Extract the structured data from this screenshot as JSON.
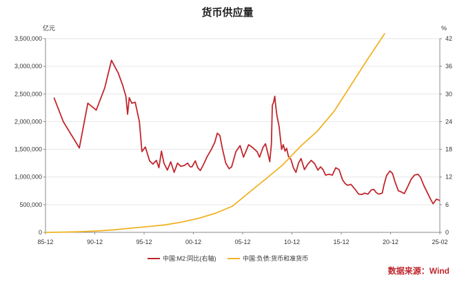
{
  "chart_data": {
    "type": "line",
    "title": "货币供应量",
    "left_unit": "亿元",
    "right_unit": "%",
    "source": "数据来源：Wind",
    "x_tick_labels": [
      "85-12",
      "90-12",
      "95-12",
      "00-12",
      "05-12",
      "10-12",
      "15-12",
      "20-12",
      "25-02"
    ],
    "y_left": {
      "ylim": [
        0,
        3500000
      ],
      "ticks": [
        0,
        500000,
        1000000,
        1500000,
        2000000,
        2500000,
        3000000,
        3500000
      ],
      "tick_labels": [
        "0",
        "500,000",
        "1,000,000",
        "1,500,000",
        "2,000,000",
        "2,500,000",
        "3,000,000",
        "3,500,000"
      ]
    },
    "y_right": {
      "ylim": [
        0,
        42
      ],
      "ticks": [
        0,
        6,
        12,
        18,
        24,
        30,
        36,
        42
      ],
      "tick_labels": [
        "0",
        "6",
        "12",
        "18",
        "24",
        "30",
        "36",
        "42"
      ]
    },
    "grid": "horizontal",
    "legend_position": "bottom",
    "series": [
      {
        "name": "中国:M2:同比(右轴)",
        "axis": "right",
        "color": "#c0262c",
        "points": [
          [
            1986.9,
            29.2
          ],
          [
            1988.0,
            24.0
          ],
          [
            1989.9,
            18.3
          ],
          [
            1990.9,
            28.0
          ],
          [
            1991.9,
            26.5
          ],
          [
            1992.9,
            31.3
          ],
          [
            1993.7,
            37.3
          ],
          [
            1994.5,
            34.5
          ],
          [
            1995.0,
            32.0
          ],
          [
            1995.4,
            29.5
          ],
          [
            1995.6,
            25.6
          ],
          [
            1995.8,
            29.2
          ],
          [
            1996.1,
            28.0
          ],
          [
            1996.5,
            28.2
          ],
          [
            1997.0,
            24.0
          ],
          [
            1997.3,
            17.5
          ],
          [
            1997.7,
            18.5
          ],
          [
            1998.2,
            15.5
          ],
          [
            1998.6,
            14.8
          ],
          [
            1999.0,
            15.6
          ],
          [
            1999.3,
            14.0
          ],
          [
            1999.6,
            17.6
          ],
          [
            1999.9,
            15.0
          ],
          [
            2000.3,
            13.5
          ],
          [
            2000.7,
            15.3
          ],
          [
            2001.1,
            13.0
          ],
          [
            2001.5,
            15.0
          ],
          [
            2001.9,
            14.3
          ],
          [
            2002.3,
            14.5
          ],
          [
            2002.7,
            15.0
          ],
          [
            2003.0,
            14.2
          ],
          [
            2003.2,
            14.2
          ],
          [
            2003.6,
            15.5
          ],
          [
            2003.9,
            14.0
          ],
          [
            2004.2,
            13.4
          ],
          [
            2004.6,
            14.8
          ],
          [
            2005.0,
            16.4
          ],
          [
            2005.5,
            18.0
          ],
          [
            2005.9,
            19.5
          ],
          [
            2006.2,
            21.5
          ],
          [
            2006.5,
            21.0
          ],
          [
            2006.8,
            18.2
          ],
          [
            2007.2,
            15.0
          ],
          [
            2007.6,
            13.8
          ],
          [
            2007.9,
            14.2
          ],
          [
            2008.4,
            17.5
          ],
          [
            2008.9,
            18.8
          ],
          [
            2009.3,
            16.3
          ],
          [
            2009.6,
            17.6
          ],
          [
            2009.9,
            19.0
          ],
          [
            2010.3,
            18.5
          ],
          [
            2010.6,
            18.0
          ],
          [
            2010.9,
            17.5
          ],
          [
            2011.2,
            16.3
          ],
          [
            2011.6,
            18.4
          ],
          [
            2011.9,
            19.2
          ],
          [
            2012.2,
            17.0
          ],
          [
            2012.4,
            15.3
          ],
          [
            2012.6,
            19.2
          ],
          [
            2012.7,
            27.5
          ],
          [
            2012.85,
            28.2
          ],
          [
            2013.0,
            29.5
          ],
          [
            2013.1,
            27.5
          ],
          [
            2013.25,
            25.3
          ],
          [
            2013.5,
            23.0
          ],
          [
            2013.8,
            18.0
          ],
          [
            2014.0,
            19.0
          ],
          [
            2014.2,
            17.6
          ],
          [
            2014.4,
            18.2
          ],
          [
            2014.6,
            16.5
          ],
          [
            2014.9,
            15.8
          ],
          [
            2015.2,
            14.0
          ],
          [
            2015.5,
            13.0
          ],
          [
            2015.8,
            15.0
          ],
          [
            2016.1,
            16.0
          ],
          [
            2016.5,
            13.6
          ],
          [
            2016.9,
            14.8
          ],
          [
            2017.3,
            15.6
          ],
          [
            2017.7,
            14.9
          ],
          [
            2018.1,
            13.5
          ],
          [
            2018.4,
            14.2
          ],
          [
            2018.7,
            13.6
          ],
          [
            2019.0,
            12.4
          ],
          [
            2019.4,
            12.6
          ],
          [
            2019.8,
            12.4
          ],
          [
            2020.2,
            14.0
          ],
          [
            2020.6,
            13.6
          ],
          [
            2021.0,
            11.4
          ],
          [
            2021.3,
            10.6
          ],
          [
            2021.6,
            10.2
          ],
          [
            2022.0,
            10.4
          ],
          [
            2022.5,
            9.3
          ],
          [
            2022.9,
            8.3
          ],
          [
            2023.3,
            8.2
          ],
          [
            2023.6,
            8.5
          ],
          [
            2024.0,
            8.3
          ],
          [
            2024.4,
            9.2
          ],
          [
            2024.7,
            9.3
          ],
          [
            2025.0,
            8.6
          ],
          [
            2025.3,
            8.3
          ],
          [
            2025.7,
            8.5
          ],
          [
            2025.9,
            10.3
          ],
          [
            2026.2,
            12.3
          ],
          [
            2026.6,
            13.3
          ],
          [
            2026.9,
            12.8
          ],
          [
            2027.2,
            11.0
          ],
          [
            2027.6,
            9.0
          ],
          [
            2027.9,
            8.8
          ],
          [
            2028.3,
            8.4
          ],
          [
            2028.7,
            9.9
          ],
          [
            2029.1,
            11.5
          ],
          [
            2029.5,
            12.4
          ],
          [
            2029.9,
            12.6
          ],
          [
            2030.2,
            12.0
          ],
          [
            2030.6,
            10.2
          ],
          [
            2031.0,
            8.7
          ],
          [
            2031.4,
            7.2
          ],
          [
            2031.7,
            6.2
          ],
          [
            2032.1,
            7.2
          ],
          [
            2032.5,
            6.9
          ]
        ]
      },
      {
        "name": "中国:负债:货币和准货币",
        "axis": "left",
        "color": "#f0b323",
        "points": [
          [
            1985.9,
            0
          ],
          [
            1988.0,
            4000
          ],
          [
            1990.0,
            13000
          ],
          [
            1992.0,
            25000
          ],
          [
            1994.0,
            46000
          ],
          [
            1996.0,
            76000
          ],
          [
            1998.0,
            105000
          ],
          [
            2000.0,
            135000
          ],
          [
            2002.0,
            185000
          ],
          [
            2004.0,
            254000
          ],
          [
            2006.0,
            345000
          ],
          [
            2008.0,
            475000
          ],
          [
            2010.0,
            725000
          ],
          [
            2012.0,
            974000
          ],
          [
            2014.0,
            1228000
          ],
          [
            2016.0,
            1550000
          ],
          [
            2018.0,
            1825000
          ],
          [
            2020.0,
            2186000
          ],
          [
            2022.0,
            2660000
          ],
          [
            2024.0,
            3138000
          ],
          [
            2025.0,
            3363000
          ],
          [
            2026.0,
            3595000
          ]
        ]
      }
    ]
  }
}
